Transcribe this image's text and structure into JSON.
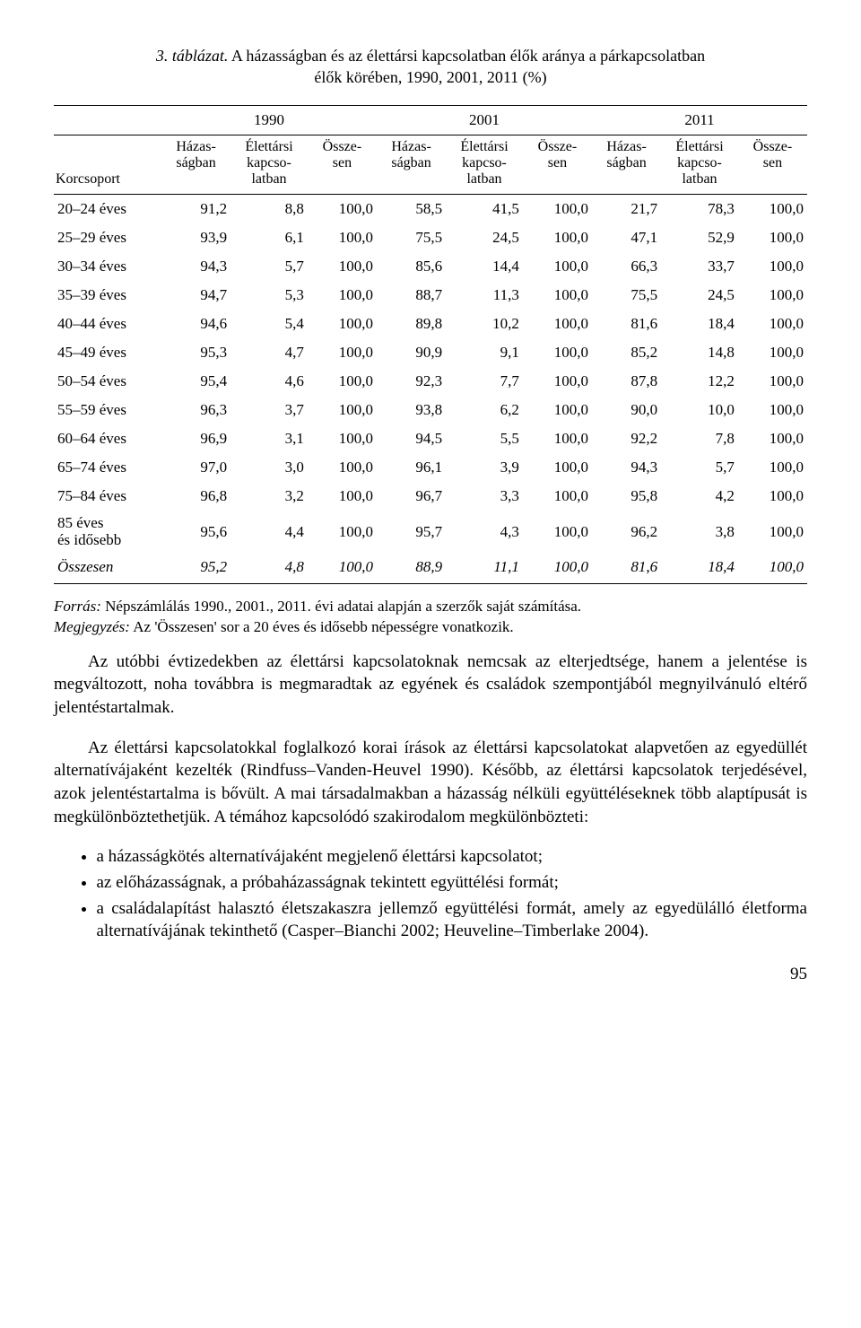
{
  "caption": {
    "number": "3. táblázat.",
    "title_line1": "A házasságban és az élettársi kapcsolatban élők aránya a párkapcsolatban",
    "title_line2": "élők körében, 1990, 2001, 2011 (%)"
  },
  "table": {
    "corner": "Korcsoport",
    "years": [
      "1990",
      "2001",
      "2011"
    ],
    "subheads": {
      "h1": "Házas-\nságban",
      "h2": "Élettársi\nkapcso-\nlatban",
      "h3": "Össze-\nsen"
    },
    "rows": [
      {
        "label": "20–24 éves",
        "v": [
          "91,2",
          "8,8",
          "100,0",
          "58,5",
          "41,5",
          "100,0",
          "21,7",
          "78,3",
          "100,0"
        ]
      },
      {
        "label": "25–29 éves",
        "v": [
          "93,9",
          "6,1",
          "100,0",
          "75,5",
          "24,5",
          "100,0",
          "47,1",
          "52,9",
          "100,0"
        ]
      },
      {
        "label": "30–34 éves",
        "v": [
          "94,3",
          "5,7",
          "100,0",
          "85,6",
          "14,4",
          "100,0",
          "66,3",
          "33,7",
          "100,0"
        ]
      },
      {
        "label": "35–39 éves",
        "v": [
          "94,7",
          "5,3",
          "100,0",
          "88,7",
          "11,3",
          "100,0",
          "75,5",
          "24,5",
          "100,0"
        ]
      },
      {
        "label": "40–44 éves",
        "v": [
          "94,6",
          "5,4",
          "100,0",
          "89,8",
          "10,2",
          "100,0",
          "81,6",
          "18,4",
          "100,0"
        ]
      },
      {
        "label": "45–49 éves",
        "v": [
          "95,3",
          "4,7",
          "100,0",
          "90,9",
          "9,1",
          "100,0",
          "85,2",
          "14,8",
          "100,0"
        ]
      },
      {
        "label": "50–54 éves",
        "v": [
          "95,4",
          "4,6",
          "100,0",
          "92,3",
          "7,7",
          "100,0",
          "87,8",
          "12,2",
          "100,0"
        ]
      },
      {
        "label": "55–59 éves",
        "v": [
          "96,3",
          "3,7",
          "100,0",
          "93,8",
          "6,2",
          "100,0",
          "90,0",
          "10,0",
          "100,0"
        ]
      },
      {
        "label": "60–64 éves",
        "v": [
          "96,9",
          "3,1",
          "100,0",
          "94,5",
          "5,5",
          "100,0",
          "92,2",
          "7,8",
          "100,0"
        ]
      },
      {
        "label": "65–74 éves",
        "v": [
          "97,0",
          "3,0",
          "100,0",
          "96,1",
          "3,9",
          "100,0",
          "94,3",
          "5,7",
          "100,0"
        ]
      },
      {
        "label": "75–84 éves",
        "v": [
          "96,8",
          "3,2",
          "100,0",
          "96,7",
          "3,3",
          "100,0",
          "95,8",
          "4,2",
          "100,0"
        ]
      },
      {
        "label": "85 éves\nés idősebb",
        "v": [
          "95,6",
          "4,4",
          "100,0",
          "95,7",
          "4,3",
          "100,0",
          "96,2",
          "3,8",
          "100,0"
        ],
        "tall": true
      },
      {
        "label": "Összesen",
        "v": [
          "95,2",
          "4,8",
          "100,0",
          "88,9",
          "11,1",
          "100,0",
          "81,6",
          "18,4",
          "100,0"
        ],
        "total": true
      }
    ]
  },
  "source": {
    "label1": "Forrás:",
    "text1": " Népszámlálás 1990., 2001., 2011. évi adatai alapján a szerzők saját számítása.",
    "label2": "Megjegyzés:",
    "text2": " Az 'Összesen' sor a 20 éves és idősebb népességre vonatkozik."
  },
  "paragraphs": {
    "p1": "Az utóbbi évtizedekben az élettársi kapcsolatoknak nemcsak az elterjedtsége, hanem a jelentése is megváltozott, noha továbbra is megmaradtak az egyének és családok szempontjából megnyilvánuló eltérő jelentéstartalmak.",
    "p2": "Az élettársi kapcsolatokkal foglalkozó korai írások az élettársi kapcsolatokat alapvetően az egyedüllét alternatívájaként kezelték (Rindfuss–Vanden-Heuvel 1990). Később, az élettársi kapcsolatok terjedésével, azok jelentéstartalma is bővült. A mai társadalmakban a házasság nélküli együttéléseknek több alaptípusát is megkülönböztethetjük. A témához kapcsolódó szakirodalom megkülönbözteti:"
  },
  "bullets": [
    "a házasságkötés alternatívájaként megjelenő élettársi kapcsolatot;",
    "az előházasságnak, a próbaházasságnak tekintett együttélési formát;",
    "a családalapítást halasztó életszakaszra jellemző együttélési formát, amely az egyedülálló életforma alternatívájának tekinthető (Casper–Bianchi 2002; Heuveline–Timberlake 2004)."
  ],
  "pagenum": "95"
}
